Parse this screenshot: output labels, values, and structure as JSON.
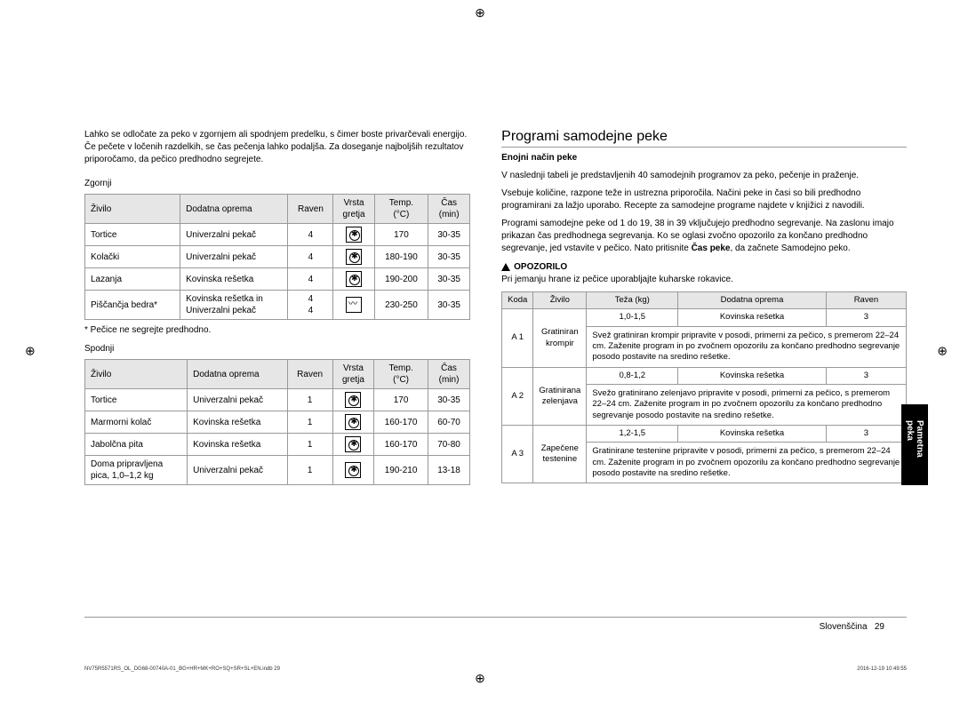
{
  "left": {
    "intro": "Lahko se odločate za peko v zgornjem ali spodnjem predelku, s čimer boste privarčevali energijo. Če pečete v ločenih razdelkih, se čas pečenja lahko podaljša. Za doseganje najboljših rezultatov priporočamo, da pečico predhodno segrejete.",
    "upper_label": "Zgornji",
    "lower_label": "Spodnji",
    "headers": {
      "food": "Živilo",
      "acc": "Dodatna oprema",
      "level": "Raven",
      "mode": "Vrsta\ngretja",
      "temp": "Temp.\n(°C)",
      "time": "Čas\n(min)"
    },
    "upper_rows": [
      {
        "food": "Tortice",
        "acc": "Univerzalni pekač",
        "level": "4",
        "temp": "170",
        "time": "30-35"
      },
      {
        "food": "Kolački",
        "acc": "Univerzalni pekač",
        "level": "4",
        "temp": "180-190",
        "time": "30-35"
      },
      {
        "food": "Lazanja",
        "acc": "Kovinska rešetka",
        "level": "4",
        "temp": "190-200",
        "time": "30-35"
      },
      {
        "food": "Piščančja bedra*",
        "acc": "Kovinska rešetka in\nUniverzalni pekač",
        "level": "4\n4",
        "temp": "230-250",
        "time": "30-35"
      }
    ],
    "note": "* Pečice ne segrejte predhodno.",
    "lower_rows": [
      {
        "food": "Tortice",
        "acc": "Univerzalni pekač",
        "level": "1",
        "temp": "170",
        "time": "30-35"
      },
      {
        "food": "Marmorni kolač",
        "acc": "Kovinska rešetka",
        "level": "1",
        "temp": "160-170",
        "time": "60-70"
      },
      {
        "food": "Jabolčna pita",
        "acc": "Kovinska rešetka",
        "level": "1",
        "temp": "160-170",
        "time": "70-80"
      },
      {
        "food": "Doma pripravljena\npica, 1,0–1,2 kg",
        "acc": "Univerzalni pekač",
        "level": "1",
        "temp": "190-210",
        "time": "13-18"
      }
    ]
  },
  "right": {
    "title": "Programi samodejne peke",
    "sub": "Enojni način peke",
    "p1": "V naslednji tabeli je predstavljenih 40 samodejnih programov za peko, pečenje in praženje.",
    "p2": "Vsebuje količine, razpone teže in ustrezna priporočila. Načini peke in časi so bili predhodno programirani za lažjo uporabo. Recepte za samodejne programe najdete v knjižici z navodili.",
    "p3_a": "Programi samodejne peke od 1 do 19, 38 in 39 vključujejo predhodno segrevanje. Na zaslonu imajo prikazan čas predhodnega segrevanja. Ko se oglasi zvočno opozorilo za končano predhodno segrevanje, jed vstavite v pečico. Nato pritisnite ",
    "p3_b": "Čas peke",
    "p3_c": ", da začnete Samodejno peko.",
    "warn_label": "OPOZORILO",
    "warn_text": "Pri jemanju hrane iz pečice uporabljajte kuharske rokavice.",
    "headers": {
      "code": "Koda",
      "food": "Živilo",
      "weight": "Teža (kg)",
      "acc": "Dodatna oprema",
      "level": "Raven"
    },
    "rows": [
      {
        "code": "A 1",
        "food": "Gratiniran\nkrompir",
        "w": "1,0-1,5",
        "acc": "Kovinska rešetka",
        "lvl": "3",
        "desc": "Svež gratiniran krompir pripravite v posodi, primerni za pečico, s premerom 22–24 cm. Zaženite program in po zvočnem opozorilu za končano predhodno segrevanje posodo postavite na sredino rešetke."
      },
      {
        "code": "A 2",
        "food": "Gratinirana\nzelenjava",
        "w": "0,8-1,2",
        "acc": "Kovinska rešetka",
        "lvl": "3",
        "desc": "Svežo gratinirano zelenjavo pripravite v posodi, primerni za pečico, s premerom 22–24 cm. Zaženite program in po zvočnem opozorilu za končano predhodno segrevanje posodo postavite na sredino rešetke."
      },
      {
        "code": "A 3",
        "food": "Zapečene\ntestenine",
        "w": "1,2-1,5",
        "acc": "Kovinska rešetka",
        "lvl": "3",
        "desc": "Gratinirane testenine pripravite v posodi, primerni za pečico, s premerom 22–24 cm. Zaženite program in po zvočnem opozorilu za končano predhodno segrevanje posodo postavite na sredino rešetke."
      }
    ],
    "side_tab": "Pametna peka",
    "footer_lang": "Slovenščina",
    "footer_page": "29"
  },
  "fine": {
    "left": "NV75R5571RS_OL_DG68-00740A-01_BG+HR+MK+RO+SQ+SR+SL+EN.indb   29",
    "right": "2016-12-19   10:49:55"
  }
}
